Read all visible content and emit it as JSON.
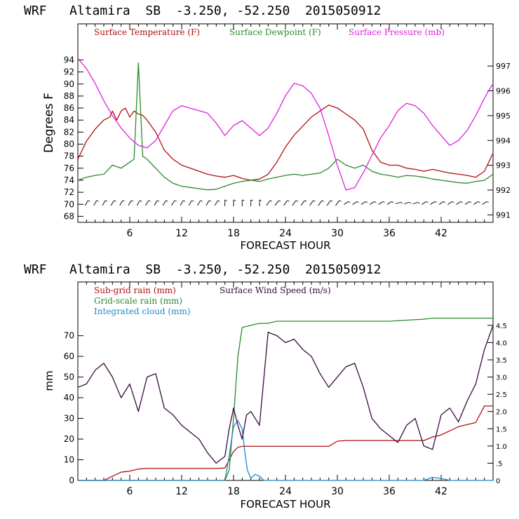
{
  "colors": {
    "temperature": "#b01010",
    "dewpoint": "#2a8a2a",
    "pressure": "#e020e0",
    "subgrid": "#b01010",
    "gridscale": "#2a8a2a",
    "cloud": "#1e88c8",
    "wind": "#3a0a40",
    "barbs": "#1a0a20",
    "axes": "#000000"
  },
  "chart_data": [
    {
      "type": "line",
      "title": "WRF   Altamira  SB  -3.250, -52.250  2015050912",
      "xlabel": "FORECAST HOUR",
      "ylabel": "Degrees F",
      "xlim": [
        0,
        48
      ],
      "xticks": [
        6,
        12,
        18,
        24,
        30,
        36,
        42
      ],
      "ylim": [
        67,
        100
      ],
      "yticks": [
        68,
        70,
        72,
        74,
        76,
        78,
        80,
        82,
        84,
        86,
        88,
        90,
        92,
        94
      ],
      "y2lim": [
        990.7,
        998.7
      ],
      "y2ticks": [
        991,
        992,
        993,
        994,
        995,
        996,
        997
      ],
      "legend": [
        "Surface Temperature (F)",
        "Surface Dewpoint (F)",
        "Surface Pressure (mb)"
      ],
      "series": [
        {
          "name": "Surface Temperature (F)",
          "axis": "left",
          "x": [
            0,
            1,
            2,
            3,
            3.7,
            4,
            4.5,
            5,
            5.5,
            6,
            6.5,
            7,
            7.5,
            8,
            9,
            10,
            11,
            12,
            13,
            14,
            15,
            16,
            17,
            18,
            19,
            20,
            21,
            22,
            23,
            24,
            25,
            26,
            27,
            28,
            29,
            30,
            30.5,
            31,
            32,
            33,
            34,
            35,
            36,
            37,
            38,
            39,
            40,
            41,
            42,
            43,
            44,
            45,
            46,
            47,
            48
          ],
          "values": [
            77.5,
            80.5,
            82.5,
            84.0,
            84.5,
            85.5,
            84.0,
            85.5,
            86.0,
            84.5,
            85.5,
            85.0,
            84.8,
            84.0,
            82.0,
            79.0,
            77.5,
            76.5,
            76.0,
            75.5,
            75.0,
            74.7,
            74.5,
            74.8,
            74.3,
            74.0,
            74.2,
            75.0,
            77.0,
            79.5,
            81.5,
            83.0,
            84.5,
            85.5,
            86.5,
            86.0,
            85.5,
            85.0,
            84.0,
            82.5,
            79.0,
            77.0,
            76.5,
            76.5,
            76.0,
            75.8,
            75.5,
            75.8,
            75.5,
            75.2,
            75.0,
            74.8,
            74.5,
            75.5,
            78.5
          ]
        },
        {
          "name": "Surface Dewpoint (F)",
          "axis": "left",
          "x": [
            0,
            1,
            2,
            3,
            4,
            5,
            6,
            6.5,
            7,
            7.5,
            8,
            9,
            10,
            11,
            12,
            13,
            14,
            15,
            16,
            17,
            18,
            19,
            20,
            21,
            22,
            23,
            24,
            25,
            26,
            27,
            28,
            29,
            30,
            31,
            32,
            33,
            34,
            35,
            36,
            37,
            38,
            39,
            40,
            41,
            42,
            43,
            44,
            45,
            46,
            47,
            48
          ],
          "values": [
            74.0,
            74.5,
            74.8,
            75.0,
            76.5,
            76.0,
            77.0,
            77.5,
            93.5,
            78.0,
            77.5,
            76.0,
            74.5,
            73.5,
            73.0,
            72.8,
            72.6,
            72.4,
            72.5,
            73.0,
            73.5,
            73.8,
            74.0,
            73.8,
            74.2,
            74.5,
            74.8,
            75.0,
            74.8,
            75.0,
            75.2,
            76.0,
            77.5,
            76.5,
            76.0,
            76.5,
            75.5,
            75.0,
            74.8,
            74.5,
            74.8,
            74.7,
            74.5,
            74.2,
            74.0,
            73.8,
            73.6,
            73.5,
            73.8,
            74.0,
            75.0
          ]
        },
        {
          "name": "Surface Pressure (mb)",
          "axis": "right",
          "x": [
            0,
            1,
            2,
            3,
            4,
            5,
            6,
            7,
            8,
            9,
            10,
            11,
            12,
            13,
            14,
            15,
            16,
            17,
            18,
            19,
            20,
            21,
            22,
            23,
            24,
            25,
            26,
            27,
            28,
            29,
            30,
            31,
            32,
            33,
            34,
            35,
            36,
            37,
            38,
            39,
            40,
            41,
            42,
            43,
            44,
            45,
            46,
            47,
            48
          ],
          "values": [
            997.3,
            996.9,
            996.3,
            995.6,
            995.0,
            994.5,
            994.1,
            993.8,
            993.7,
            994.0,
            994.6,
            995.2,
            995.4,
            995.3,
            995.2,
            995.1,
            994.7,
            994.2,
            994.6,
            994.8,
            994.5,
            994.2,
            994.5,
            995.1,
            995.8,
            996.3,
            996.2,
            995.9,
            995.3,
            994.2,
            993.0,
            992.0,
            992.1,
            992.7,
            993.4,
            994.1,
            994.6,
            995.2,
            995.5,
            995.4,
            995.1,
            994.6,
            994.2,
            993.8,
            994.0,
            994.4,
            995.0,
            995.7,
            996.3
          ]
        }
      ]
    },
    {
      "type": "line",
      "title": "WRF   Altamira  SB  -3.250, -52.250  2015050912",
      "xlabel": "FORECAST HOUR",
      "ylabel": "mm",
      "xlim": [
        0,
        48
      ],
      "xticks": [
        6,
        12,
        18,
        24,
        30,
        36,
        42
      ],
      "ylim": [
        0,
        96
      ],
      "yticks": [
        0,
        10,
        20,
        30,
        40,
        50,
        60,
        70
      ],
      "y2lim": [
        0,
        5.76
      ],
      "y2ticks": [
        "0",
        ".5",
        "1.0",
        "1.5",
        "2.0",
        "2.5",
        "3.0",
        "3.5",
        "4.0",
        "4.5"
      ],
      "legend": [
        "Sub-grid rain (mm)",
        "Grid-scale rain (mm)",
        "Integrated cloud (mm)",
        "Surface Wind Speed (m/s)"
      ],
      "series": [
        {
          "name": "Sub-grid rain (mm)",
          "axis": "left",
          "x": [
            0,
            3,
            4,
            5,
            6,
            7,
            8,
            16,
            17,
            18,
            18.5,
            19,
            20,
            29,
            30,
            31,
            40,
            41,
            42,
            43,
            44,
            45,
            46,
            47,
            48
          ],
          "values": [
            0,
            0,
            2,
            4,
            4.5,
            5.5,
            5.8,
            5.8,
            6,
            14,
            16,
            16.5,
            16.5,
            16.5,
            19,
            19.3,
            19.3,
            21,
            22,
            24,
            26,
            27,
            28,
            36,
            36
          ]
        },
        {
          "name": "Grid-scale rain (mm)",
          "axis": "left",
          "x": [
            0,
            17,
            17.5,
            18,
            18.5,
            19,
            20,
            21,
            22,
            23,
            24,
            25,
            36,
            38,
            40,
            41,
            42,
            43,
            48
          ],
          "values": [
            0,
            0,
            5,
            30,
            60,
            74,
            75,
            76,
            76,
            77,
            77,
            77,
            77,
            77.5,
            78,
            78.5,
            78.5,
            78.5,
            78.5
          ]
        },
        {
          "name": "Integrated cloud (mm)",
          "axis": "left",
          "x": [
            0,
            17,
            17.5,
            18,
            18.5,
            19,
            19.3,
            19.6,
            20,
            20.5,
            21,
            21.5,
            40,
            41,
            42,
            43,
            48
          ],
          "values": [
            0,
            0,
            12,
            26,
            29,
            25,
            14,
            5,
            1,
            3,
            2,
            0,
            0,
            1.5,
            1,
            0,
            0
          ]
        },
        {
          "name": "Surface Wind Speed (m/s)",
          "axis": "right",
          "x": [
            0,
            1,
            2,
            3,
            4,
            5,
            6,
            7,
            8,
            9,
            10,
            11,
            12,
            13,
            14,
            15,
            16,
            17,
            17.5,
            18,
            18.5,
            19,
            19.5,
            20,
            21,
            22,
            23,
            24,
            25,
            26,
            27,
            28,
            29,
            30,
            31,
            32,
            33,
            34,
            35,
            36,
            37,
            38,
            39,
            40,
            41,
            42,
            43,
            44,
            45,
            46,
            47,
            48
          ],
          "values": [
            2.7,
            2.8,
            3.2,
            3.4,
            3.0,
            2.4,
            2.8,
            2.0,
            3.0,
            3.1,
            2.1,
            1.9,
            1.6,
            1.4,
            1.2,
            0.8,
            0.5,
            0.7,
            1.5,
            2.1,
            1.6,
            1.2,
            1.9,
            2.0,
            1.6,
            4.3,
            4.2,
            4.0,
            4.1,
            3.8,
            3.6,
            3.1,
            2.7,
            3.0,
            3.3,
            3.4,
            2.7,
            1.8,
            1.5,
            1.3,
            1.1,
            1.6,
            1.8,
            1.0,
            0.9,
            1.9,
            2.1,
            1.7,
            2.3,
            2.8,
            3.8,
            4.5
          ]
        }
      ]
    }
  ]
}
